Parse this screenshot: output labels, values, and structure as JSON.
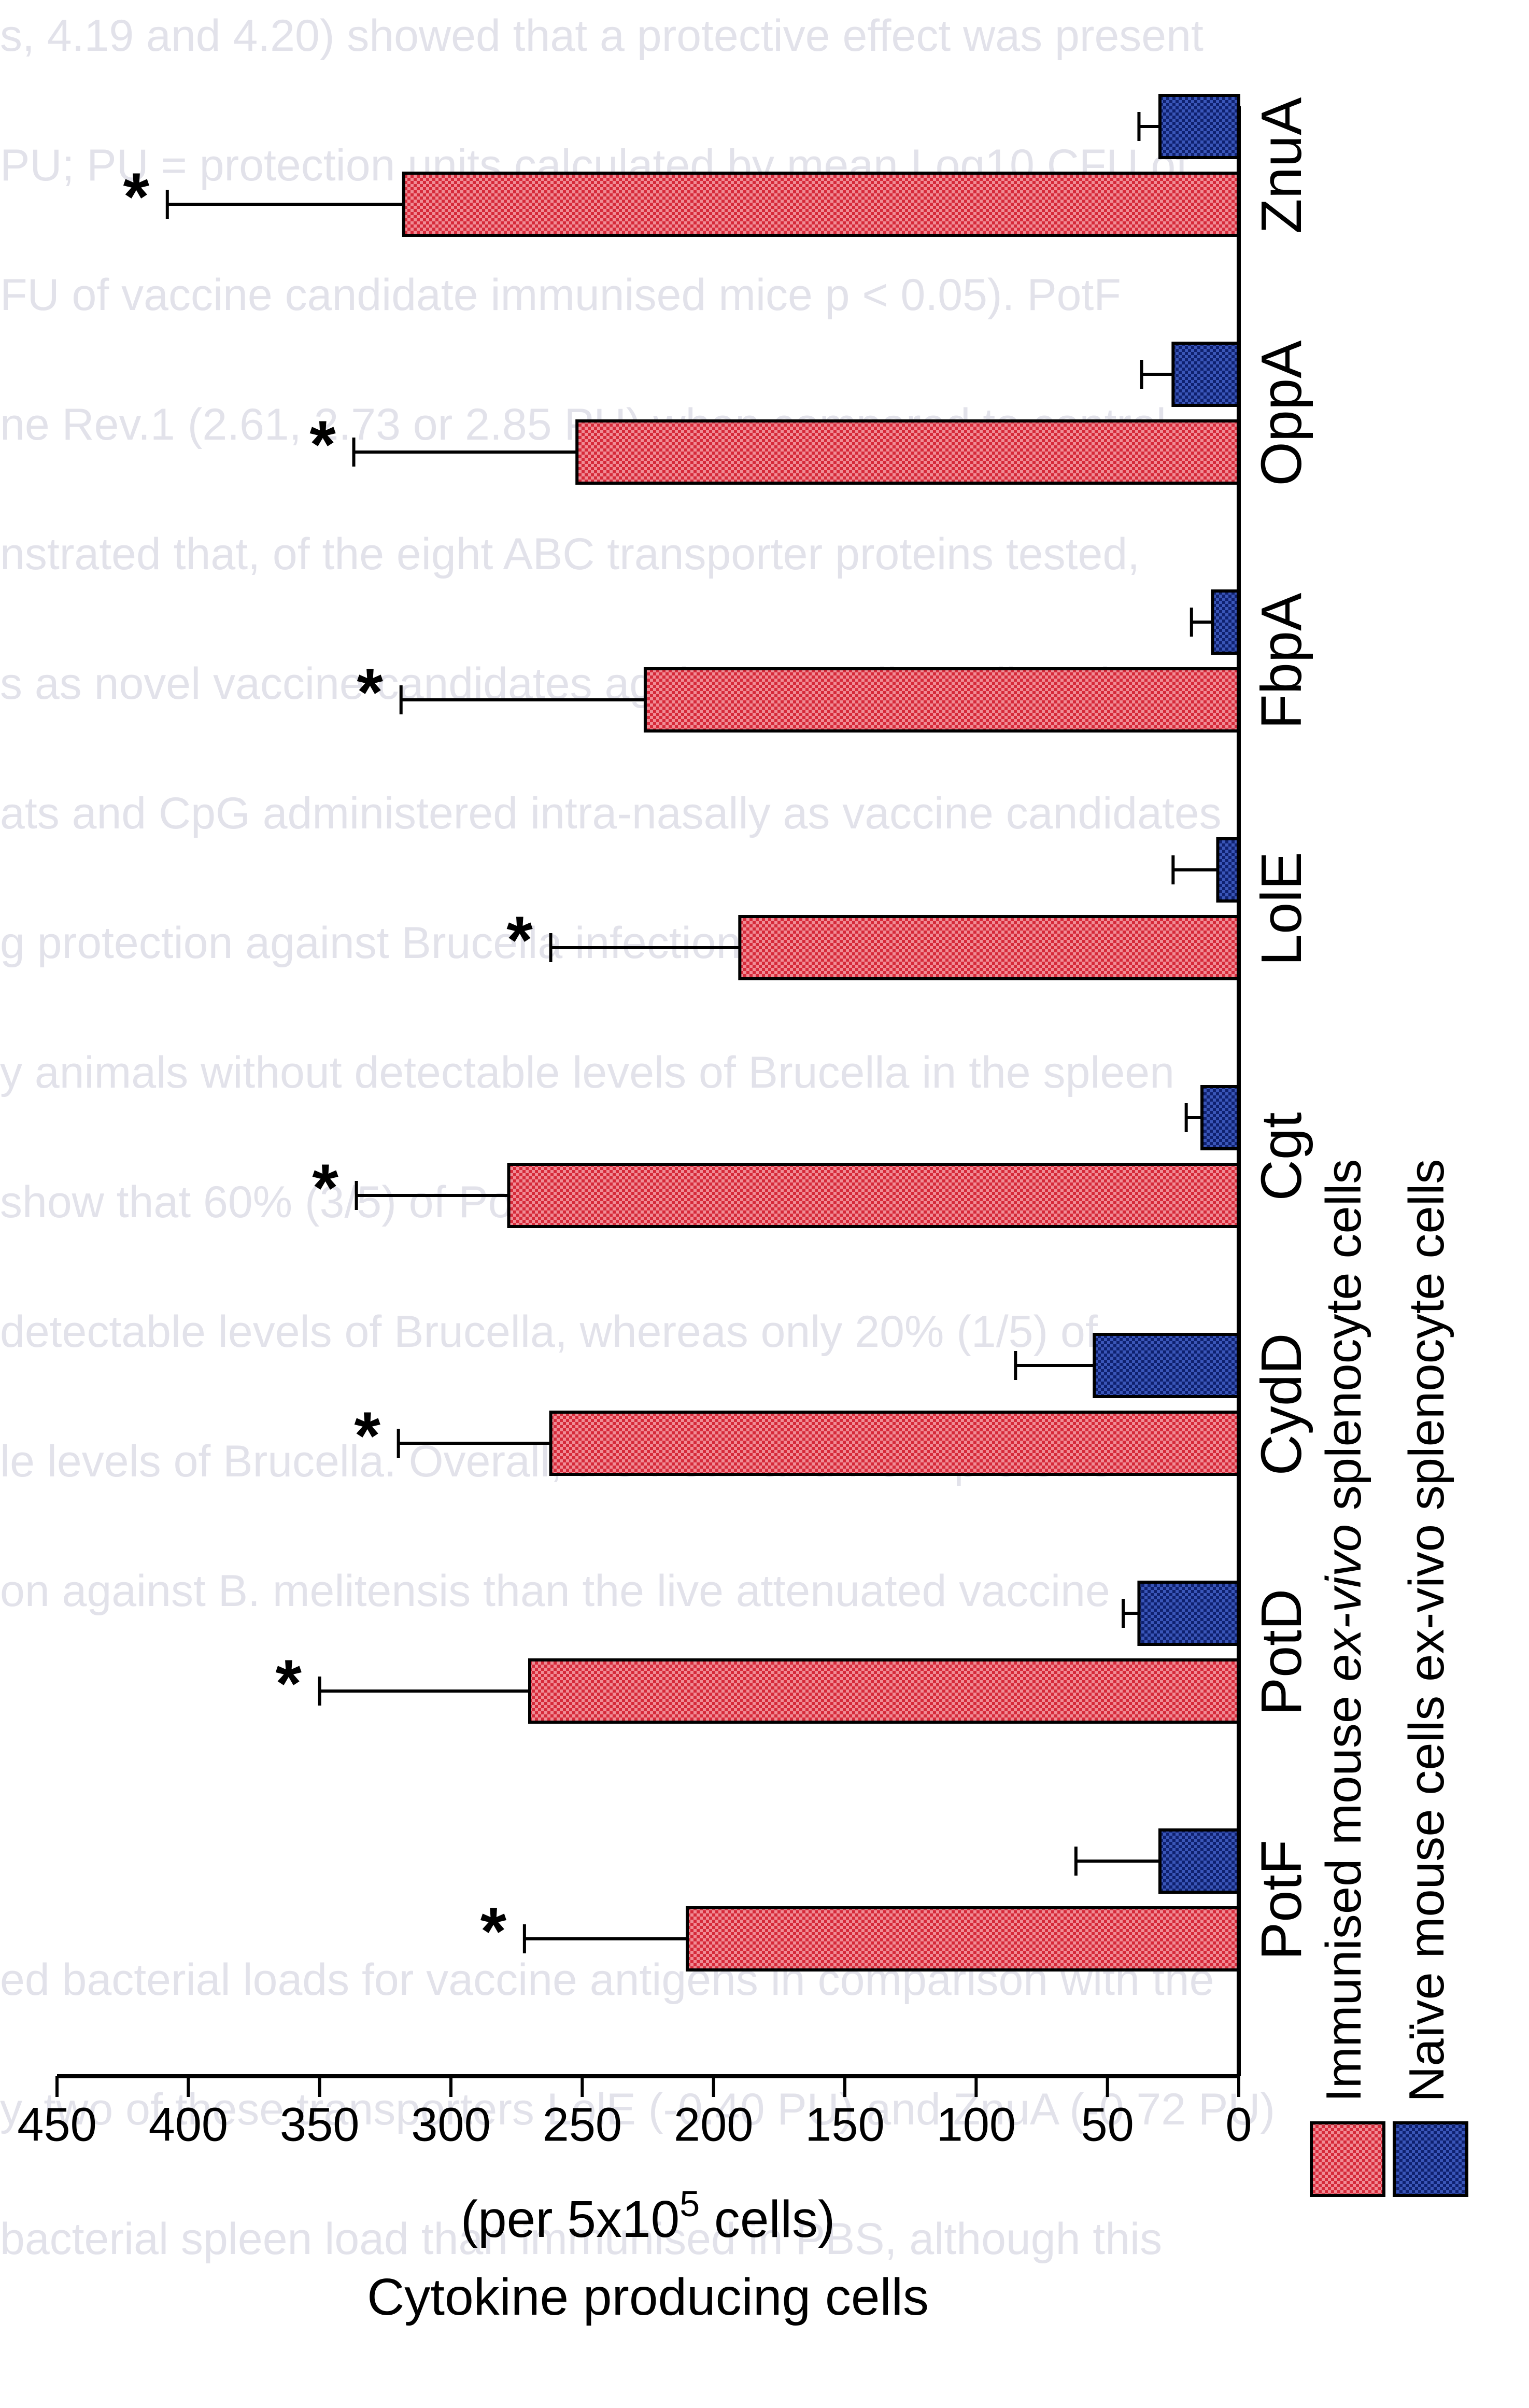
{
  "bleed_through_text": [
    "s, 4.19 and 4.20) showed that a protective effect was present",
    "PU; PU = protection units calculated by mean Log10 CFU of",
    "FU of vaccine candidate immunised mice p < 0.05). PotF",
    "ne Rev.1 (2.61, 2.73 or 2.85 PU) when compared to control",
    "nstrated that, of the eight ABC transporter proteins tested,",
    "s as novel vaccine candidates against Brucella melitensis 16",
    "ats and CpG administered intra-nasally as vaccine candidates",
    "g protection against Brucella infection (2.21 PU, p < 0.05)",
    "y animals without detectable levels of Brucella in the spleen",
    "show that 60% (3/5) of PotD-immunised mice and 80% (4/5)",
    "detectable levels of Brucella, whereas only 20% (1/5) of",
    "le levels of Brucella. Overall, the PotD and PotF proteins",
    "on against B. melitensis than the live attenuated vaccine",
    "",
    "",
    "ed bacterial loads for vaccine antigens in comparison with the",
    "y, two of these transporters LolE (-0.40 PU) and ZnuA (-0.72 PU)",
    "bacterial spleen load than immunised in PBS, although this"
  ],
  "chart_data": {
    "type": "bar",
    "orientation": "rotated-90",
    "ylabel_line1": "Cytokine producing cells",
    "ylabel_line2_prefix": "(per 5x10",
    "ylabel_line2_sup": "5",
    "ylabel_line2_suffix": " cells)",
    "ylim": [
      0,
      450
    ],
    "yticks": [
      "0",
      "50",
      "100",
      "150",
      "200",
      "250",
      "300",
      "350",
      "400",
      "450"
    ],
    "categories": [
      "PotF",
      "PotD",
      "CydD",
      "Cgt",
      "LolE",
      "FbpA",
      "OppA",
      "ZnuA"
    ],
    "series": [
      {
        "name_prefix": "Immunised mouse ",
        "name_italic": "ex-vivo",
        "name_suffix": " splenocyte cells",
        "color": "#d62a3a",
        "values": [
          210,
          270,
          262,
          278,
          190,
          226,
          252,
          318
        ],
        "errors": [
          62,
          80,
          58,
          58,
          72,
          93,
          85,
          90
        ],
        "significance": [
          "*",
          "*",
          "*",
          "*",
          "*",
          "*",
          "*",
          "*"
        ]
      },
      {
        "name_prefix": "Naïve mouse cells ex-vivo splenocyte cells",
        "name_italic": "",
        "name_suffix": "",
        "color": "#1a2f7c",
        "values": [
          30,
          38,
          55,
          14,
          8,
          10,
          25,
          30
        ],
        "errors": [
          32,
          6,
          30,
          6,
          17,
          8,
          12,
          8
        ],
        "significance": [
          "",
          "",
          "",
          "",
          "",
          "",
          "",
          ""
        ]
      }
    ]
  }
}
